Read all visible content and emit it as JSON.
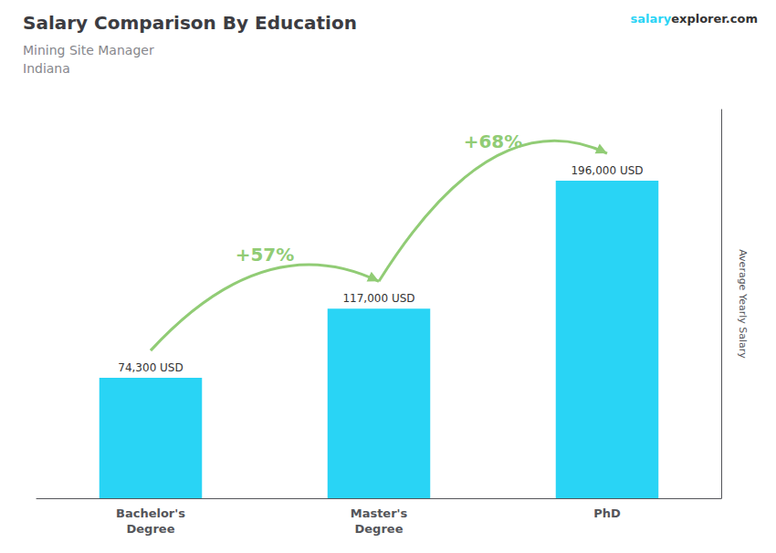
{
  "chart_data": {
    "type": "bar",
    "title": "Salary Comparison By Education",
    "subtitle": [
      "Mining Site Manager",
      "Indiana"
    ],
    "ylabel": "Average Yearly Salary",
    "categories": [
      "Bachelor's\nDegree",
      "Master's\nDegree",
      "PhD"
    ],
    "values": [
      74300,
      117000,
      196000
    ],
    "value_labels": [
      "74,300 USD",
      "117,000 USD",
      "196,000 USD"
    ],
    "data_labels": true,
    "color": "#29D4F5",
    "ylim": [
      0,
      240000
    ],
    "grid": false,
    "tick_labels": "x",
    "annotations": [
      {
        "text": "salary"
      },
      {
        "text": "explorer.com"
      },
      {
        "text": "+57%",
        "from": "Bachelor's\nDegree",
        "to": "Master's\nDegree"
      },
      {
        "text": "+68%",
        "from": "Master's\nDegree",
        "to": "PhD"
      }
    ]
  }
}
